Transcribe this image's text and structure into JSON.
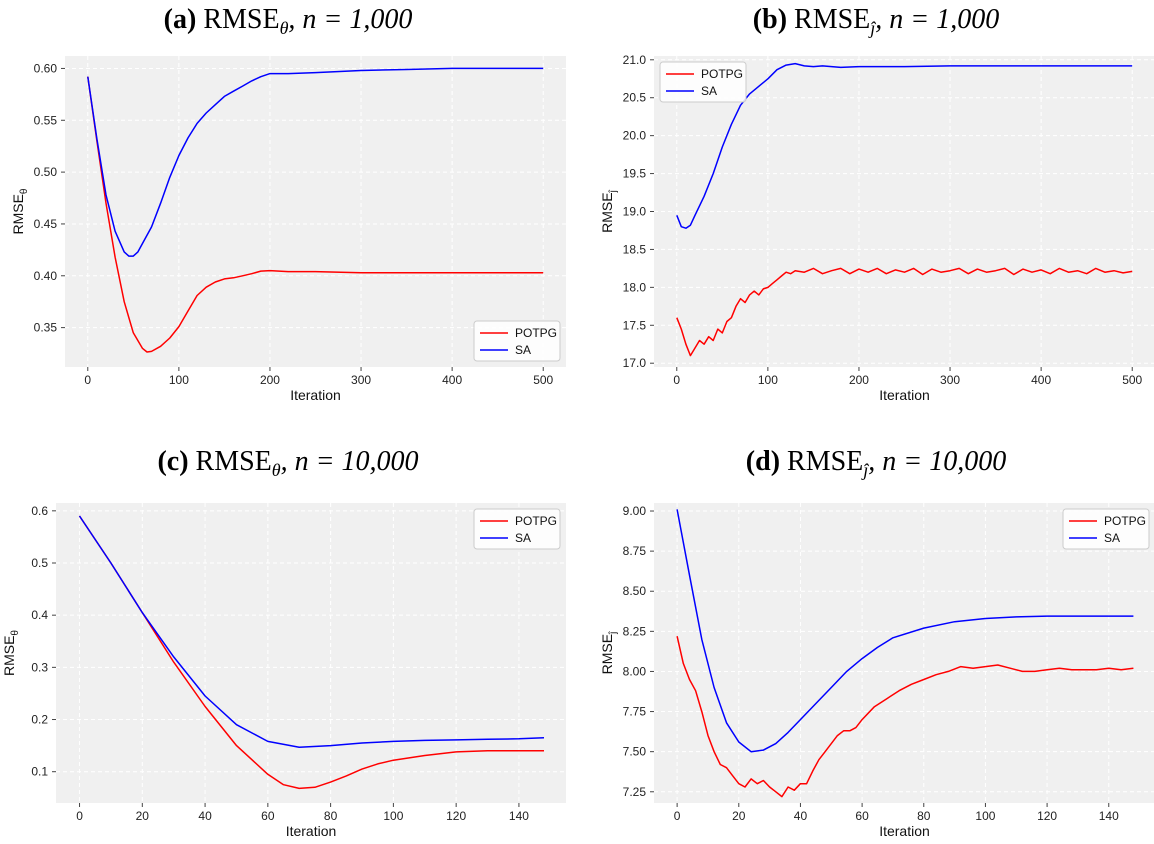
{
  "chart_data": [
    {
      "type": "line",
      "panel_label": "(a)",
      "title_metric": "RMSE",
      "title_sub": "θ",
      "title_n": "n = 1,000",
      "xlabel": "Iteration",
      "ylabel": "RMSE",
      "ylabel_sub": "θ",
      "xlim": [
        -25,
        525
      ],
      "ylim": [
        0.312,
        0.612
      ],
      "xticks": [
        0,
        100,
        200,
        300,
        400,
        500
      ],
      "yticks": [
        0.35,
        0.4,
        0.45,
        0.5,
        0.55,
        0.6
      ],
      "ytick_labels": [
        "0.35",
        "0.40",
        "0.45",
        "0.50",
        "0.55",
        "0.60"
      ],
      "legend": "bottom-right",
      "grid": true,
      "series": [
        {
          "name": "POTPG",
          "color": "#ff0000",
          "x": [
            0,
            10,
            20,
            30,
            40,
            50,
            60,
            65,
            70,
            80,
            90,
            100,
            110,
            120,
            130,
            140,
            150,
            160,
            170,
            180,
            190,
            200,
            220,
            250,
            300,
            350,
            400,
            450,
            500
          ],
          "y": [
            0.592,
            0.53,
            0.47,
            0.418,
            0.375,
            0.345,
            0.33,
            0.3265,
            0.327,
            0.332,
            0.34,
            0.351,
            0.366,
            0.381,
            0.389,
            0.394,
            0.397,
            0.398,
            0.4,
            0.402,
            0.4045,
            0.405,
            0.404,
            0.404,
            0.403,
            0.403,
            0.403,
            0.403,
            0.403
          ]
        },
        {
          "name": "SA",
          "color": "#0000ff",
          "x": [
            0,
            10,
            20,
            30,
            40,
            45,
            50,
            55,
            60,
            70,
            80,
            90,
            100,
            110,
            120,
            130,
            140,
            150,
            160,
            170,
            180,
            190,
            200,
            210,
            220,
            250,
            300,
            350,
            400,
            450,
            500
          ],
          "y": [
            0.592,
            0.532,
            0.478,
            0.443,
            0.423,
            0.419,
            0.419,
            0.423,
            0.431,
            0.447,
            0.47,
            0.495,
            0.516,
            0.533,
            0.547,
            0.557,
            0.565,
            0.573,
            0.578,
            0.583,
            0.588,
            0.592,
            0.595,
            0.595,
            0.595,
            0.596,
            0.598,
            0.599,
            0.6,
            0.6,
            0.6
          ]
        }
      ]
    },
    {
      "type": "line",
      "panel_label": "(b)",
      "title_metric": "RMSE",
      "title_sub": "ĵ",
      "title_n": "n = 1,000",
      "xlabel": "Iteration",
      "ylabel": "RMSE",
      "ylabel_sub": "ĵ",
      "xlim": [
        -25,
        525
      ],
      "ylim": [
        16.95,
        21.05
      ],
      "xticks": [
        0,
        100,
        200,
        300,
        400,
        500
      ],
      "yticks": [
        17.0,
        17.5,
        18.0,
        18.5,
        19.0,
        19.5,
        20.0,
        20.5,
        21.0
      ],
      "ytick_labels": [
        "17.0",
        "17.5",
        "18.0",
        "18.5",
        "19.0",
        "19.5",
        "20.0",
        "20.5",
        "21.0"
      ],
      "legend": "top-left",
      "grid": true,
      "series": [
        {
          "name": "POTPG",
          "color": "#ff0000",
          "x": [
            0,
            5,
            10,
            15,
            20,
            25,
            30,
            35,
            40,
            45,
            50,
            55,
            60,
            65,
            70,
            75,
            80,
            85,
            90,
            95,
            100,
            105,
            110,
            115,
            120,
            125,
            130,
            140,
            150,
            160,
            170,
            180,
            190,
            200,
            210,
            220,
            230,
            240,
            250,
            260,
            270,
            280,
            290,
            300,
            310,
            320,
            330,
            340,
            350,
            360,
            370,
            380,
            390,
            400,
            410,
            420,
            430,
            440,
            450,
            460,
            470,
            480,
            490,
            500
          ],
          "y": [
            17.6,
            17.45,
            17.25,
            17.1,
            17.2,
            17.3,
            17.25,
            17.35,
            17.3,
            17.45,
            17.4,
            17.55,
            17.6,
            17.75,
            17.85,
            17.8,
            17.9,
            17.95,
            17.9,
            17.98,
            18.0,
            18.05,
            18.1,
            18.15,
            18.2,
            18.18,
            18.22,
            18.2,
            18.25,
            18.18,
            18.22,
            18.25,
            18.18,
            18.24,
            18.2,
            18.25,
            18.18,
            18.23,
            18.2,
            18.25,
            18.17,
            18.24,
            18.2,
            18.22,
            18.25,
            18.18,
            18.24,
            18.2,
            18.22,
            18.25,
            18.17,
            18.24,
            18.2,
            18.23,
            18.18,
            18.25,
            18.2,
            18.22,
            18.18,
            18.25,
            18.2,
            18.22,
            18.19,
            18.21
          ]
        },
        {
          "name": "SA",
          "color": "#0000ff",
          "x": [
            0,
            5,
            10,
            15,
            20,
            30,
            40,
            50,
            60,
            70,
            80,
            90,
            100,
            110,
            120,
            130,
            140,
            150,
            160,
            170,
            180,
            200,
            250,
            300,
            350,
            400,
            450,
            500
          ],
          "y": [
            18.95,
            18.8,
            18.78,
            18.82,
            18.95,
            19.2,
            19.5,
            19.85,
            20.15,
            20.4,
            20.55,
            20.65,
            20.75,
            20.87,
            20.93,
            20.95,
            20.92,
            20.91,
            20.92,
            20.91,
            20.9,
            20.91,
            20.91,
            20.92,
            20.92,
            20.92,
            20.92,
            20.92
          ]
        }
      ]
    },
    {
      "type": "line",
      "panel_label": "(c)",
      "title_metric": "RMSE",
      "title_sub": "θ",
      "title_n": "n = 10,000",
      "xlabel": "Iteration",
      "ylabel": "RMSE",
      "ylabel_sub": "θ",
      "xlim": [
        -7.5,
        155
      ],
      "ylim": [
        0.04,
        0.615
      ],
      "xticks": [
        0,
        20,
        40,
        60,
        80,
        100,
        120,
        140
      ],
      "yticks": [
        0.1,
        0.2,
        0.3,
        0.4,
        0.5,
        0.6
      ],
      "ytick_labels": [
        "0.1",
        "0.2",
        "0.3",
        "0.4",
        "0.5",
        "0.6"
      ],
      "legend": "top-right",
      "grid": true,
      "series": [
        {
          "name": "POTPG",
          "color": "#ff0000",
          "x": [
            0,
            10,
            20,
            30,
            40,
            50,
            60,
            65,
            70,
            75,
            80,
            85,
            90,
            95,
            100,
            110,
            120,
            130,
            140,
            148
          ],
          "y": [
            0.59,
            0.5,
            0.405,
            0.31,
            0.225,
            0.15,
            0.095,
            0.075,
            0.068,
            0.07,
            0.08,
            0.092,
            0.105,
            0.115,
            0.122,
            0.131,
            0.138,
            0.14,
            0.14,
            0.14
          ]
        },
        {
          "name": "SA",
          "color": "#0000ff",
          "x": [
            0,
            10,
            20,
            30,
            40,
            50,
            60,
            70,
            80,
            90,
            100,
            110,
            120,
            130,
            140,
            148
          ],
          "y": [
            0.59,
            0.5,
            0.405,
            0.32,
            0.245,
            0.19,
            0.158,
            0.147,
            0.15,
            0.155,
            0.158,
            0.16,
            0.161,
            0.162,
            0.163,
            0.165
          ]
        }
      ]
    },
    {
      "type": "line",
      "panel_label": "(d)",
      "title_metric": "RMSE",
      "title_sub": "ĵ",
      "title_n": "n = 10,000",
      "xlabel": "Iteration",
      "ylabel": "RMSE",
      "ylabel_sub": "ĵ",
      "xlim": [
        -7.5,
        155
      ],
      "ylim": [
        7.18,
        9.05
      ],
      "xticks": [
        0,
        20,
        40,
        60,
        80,
        100,
        120,
        140
      ],
      "yticks": [
        7.25,
        7.5,
        7.75,
        8.0,
        8.25,
        8.5,
        8.75,
        9.0
      ],
      "ytick_labels": [
        "7.25",
        "7.50",
        "7.75",
        "8.00",
        "8.25",
        "8.50",
        "8.75",
        "9.00"
      ],
      "legend": "top-right",
      "grid": true,
      "series": [
        {
          "name": "POTPG",
          "color": "#ff0000",
          "x": [
            0,
            2,
            4,
            6,
            8,
            10,
            12,
            14,
            16,
            18,
            20,
            22,
            24,
            26,
            28,
            30,
            32,
            34,
            36,
            38,
            40,
            42,
            44,
            46,
            48,
            50,
            52,
            54,
            56,
            58,
            60,
            64,
            68,
            72,
            76,
            80,
            84,
            88,
            92,
            96,
            100,
            104,
            108,
            112,
            116,
            120,
            124,
            128,
            132,
            136,
            140,
            144,
            148
          ],
          "y": [
            8.22,
            8.05,
            7.95,
            7.88,
            7.75,
            7.6,
            7.5,
            7.42,
            7.4,
            7.35,
            7.3,
            7.28,
            7.33,
            7.3,
            7.32,
            7.28,
            7.25,
            7.22,
            7.28,
            7.26,
            7.3,
            7.3,
            7.38,
            7.45,
            7.5,
            7.55,
            7.6,
            7.63,
            7.63,
            7.65,
            7.7,
            7.78,
            7.83,
            7.88,
            7.92,
            7.95,
            7.98,
            8.0,
            8.03,
            8.02,
            8.03,
            8.04,
            8.02,
            8.0,
            8.0,
            8.01,
            8.02,
            8.01,
            8.01,
            8.01,
            8.02,
            8.01,
            8.02
          ]
        },
        {
          "name": "SA",
          "color": "#0000ff",
          "x": [
            0,
            4,
            8,
            12,
            16,
            20,
            24,
            28,
            32,
            36,
            40,
            45,
            50,
            55,
            60,
            65,
            70,
            80,
            90,
            100,
            110,
            120,
            130,
            140,
            148
          ],
          "y": [
            9.01,
            8.6,
            8.2,
            7.9,
            7.68,
            7.56,
            7.5,
            7.51,
            7.55,
            7.62,
            7.7,
            7.8,
            7.9,
            8.0,
            8.08,
            8.15,
            8.21,
            8.27,
            8.31,
            8.33,
            8.34,
            8.345,
            8.345,
            8.345,
            8.345
          ]
        }
      ]
    }
  ]
}
